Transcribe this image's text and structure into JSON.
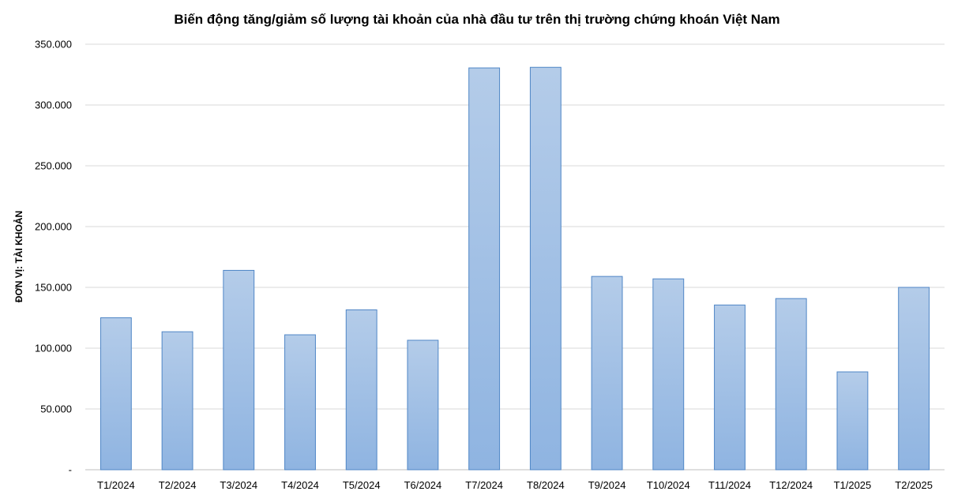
{
  "chart_data": {
    "type": "bar",
    "title": "Biến động tăng/giảm số lượng tài khoản của nhà đầu tư trên thị trường chứng khoán Việt Nam",
    "xlabel": "",
    "ylabel": "ĐƠN VỊ: TÀI KHOẢN",
    "categories": [
      "T1/2024",
      "T2/2024",
      "T3/2024",
      "T4/2024",
      "T5/2024",
      "T6/2024",
      "T7/2024",
      "T8/2024",
      "T9/2024",
      "T10/2024",
      "T11/2024",
      "T12/2024",
      "T1/2025",
      "T2/2025"
    ],
    "values": [
      125000,
      113500,
      164000,
      111000,
      131500,
      106500,
      330500,
      331000,
      159000,
      157000,
      135500,
      140800,
      80500,
      150000
    ],
    "ylim": [
      0,
      350000
    ],
    "yticks": [
      0,
      50000,
      100000,
      150000,
      200000,
      250000,
      300000,
      350000
    ],
    "ytick_labels": [
      "-",
      "50.000",
      "100.000",
      "150.000",
      "200.000",
      "250.000",
      "300.000",
      "350.000"
    ],
    "grid": true,
    "legend": "none",
    "colors": {
      "bar_top": "#b4cce9",
      "bar_bottom": "#8fb4e1",
      "bar_border": "#4f86c6",
      "grid": "#d9d9d9"
    }
  }
}
